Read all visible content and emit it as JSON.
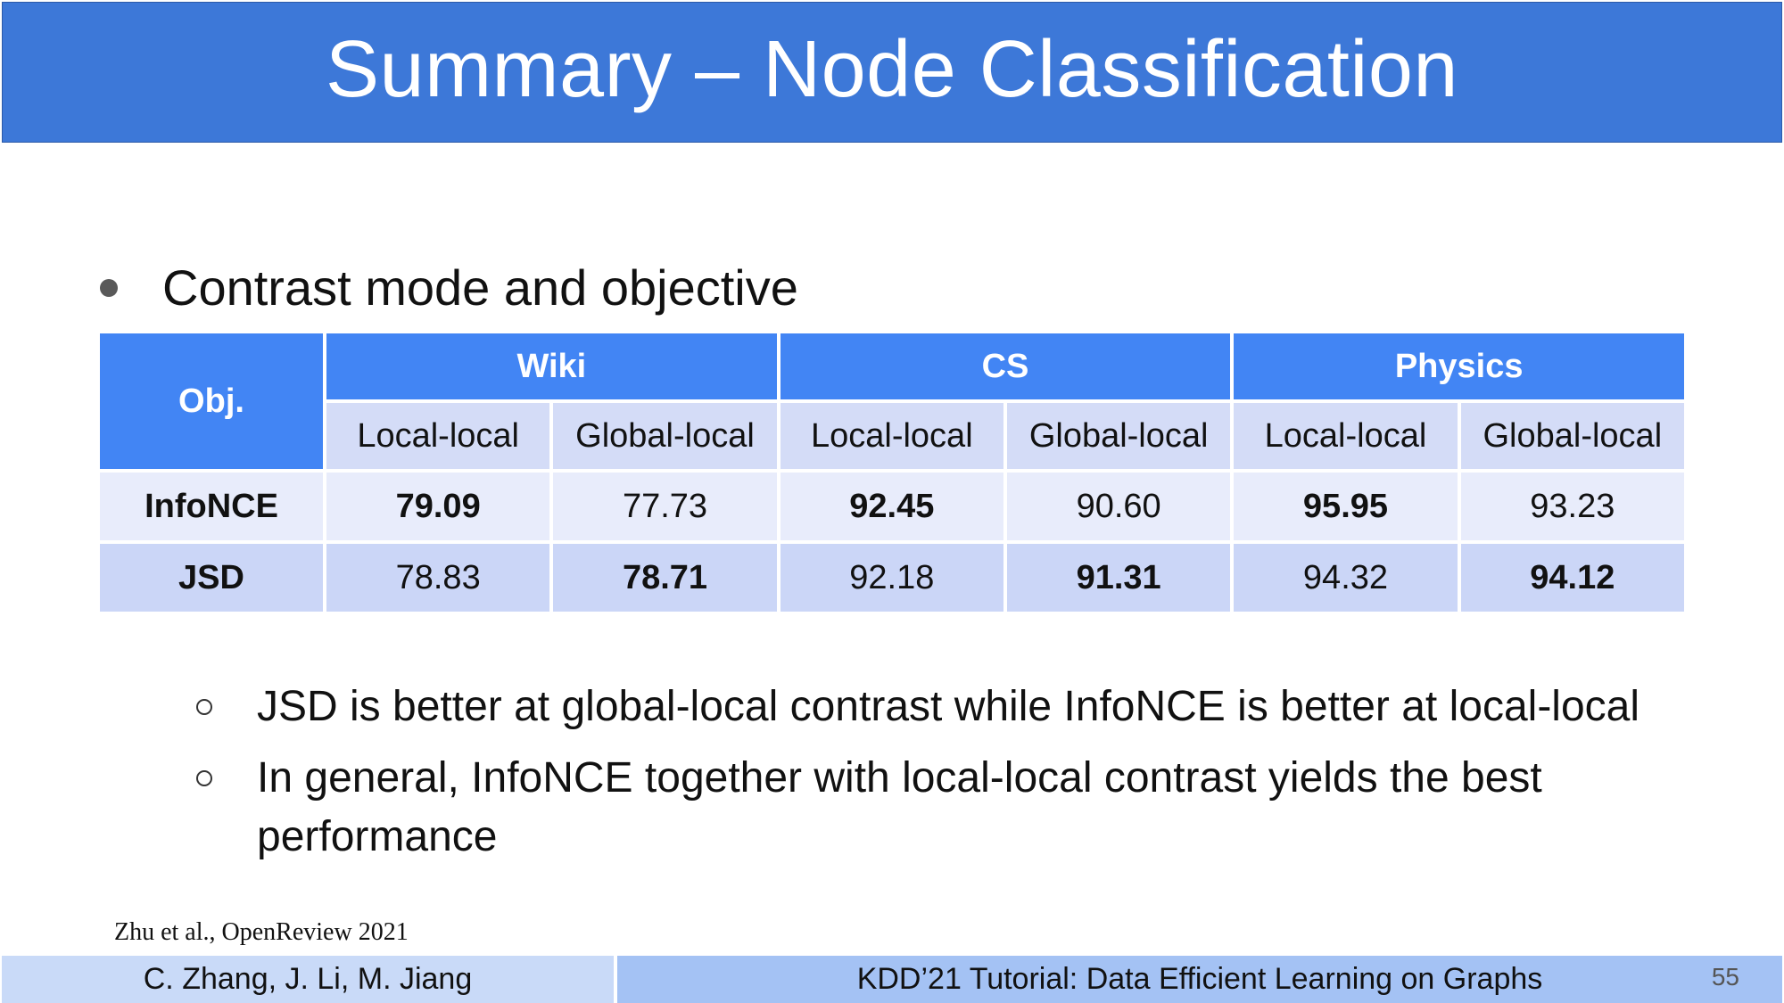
{
  "title": "Summary – Node Classification",
  "bullet": "Contrast mode and objective",
  "table": {
    "obj_header": "Obj.",
    "groups": [
      "Wiki",
      "CS",
      "Physics"
    ],
    "subheaders": [
      "Local-local",
      "Global-local",
      "Local-local",
      "Global-local",
      "Local-local",
      "Global-local"
    ],
    "rows": [
      {
        "label": "InfoNCE",
        "values": [
          "79.09",
          "77.73",
          "92.45",
          "90.60",
          "95.95",
          "93.23"
        ],
        "bold": [
          true,
          false,
          true,
          false,
          true,
          false
        ]
      },
      {
        "label": "JSD",
        "values": [
          "78.83",
          "78.71",
          "92.18",
          "91.31",
          "94.32",
          "94.12"
        ],
        "bold": [
          false,
          true,
          false,
          true,
          false,
          true
        ]
      }
    ]
  },
  "subbullets": [
    "JSD is better at global-local contrast while InfoNCE is better at local-local",
    "In general, InfoNCE together with local-local contrast yields the best performance"
  ],
  "citation": "Zhu et al., OpenReview 2021",
  "footer": {
    "authors": "C. Zhang, J. Li, M. Jiang",
    "tutorial": "KDD’21 Tutorial: Data Efficient Learning on Graphs",
    "page": "55"
  },
  "colors": {
    "title_bar": "#3d78d8",
    "header": "#4285f4",
    "subheader": "#d4dcf7",
    "row_light": "#e8ecfb",
    "row_dark": "#cbd6f7"
  }
}
